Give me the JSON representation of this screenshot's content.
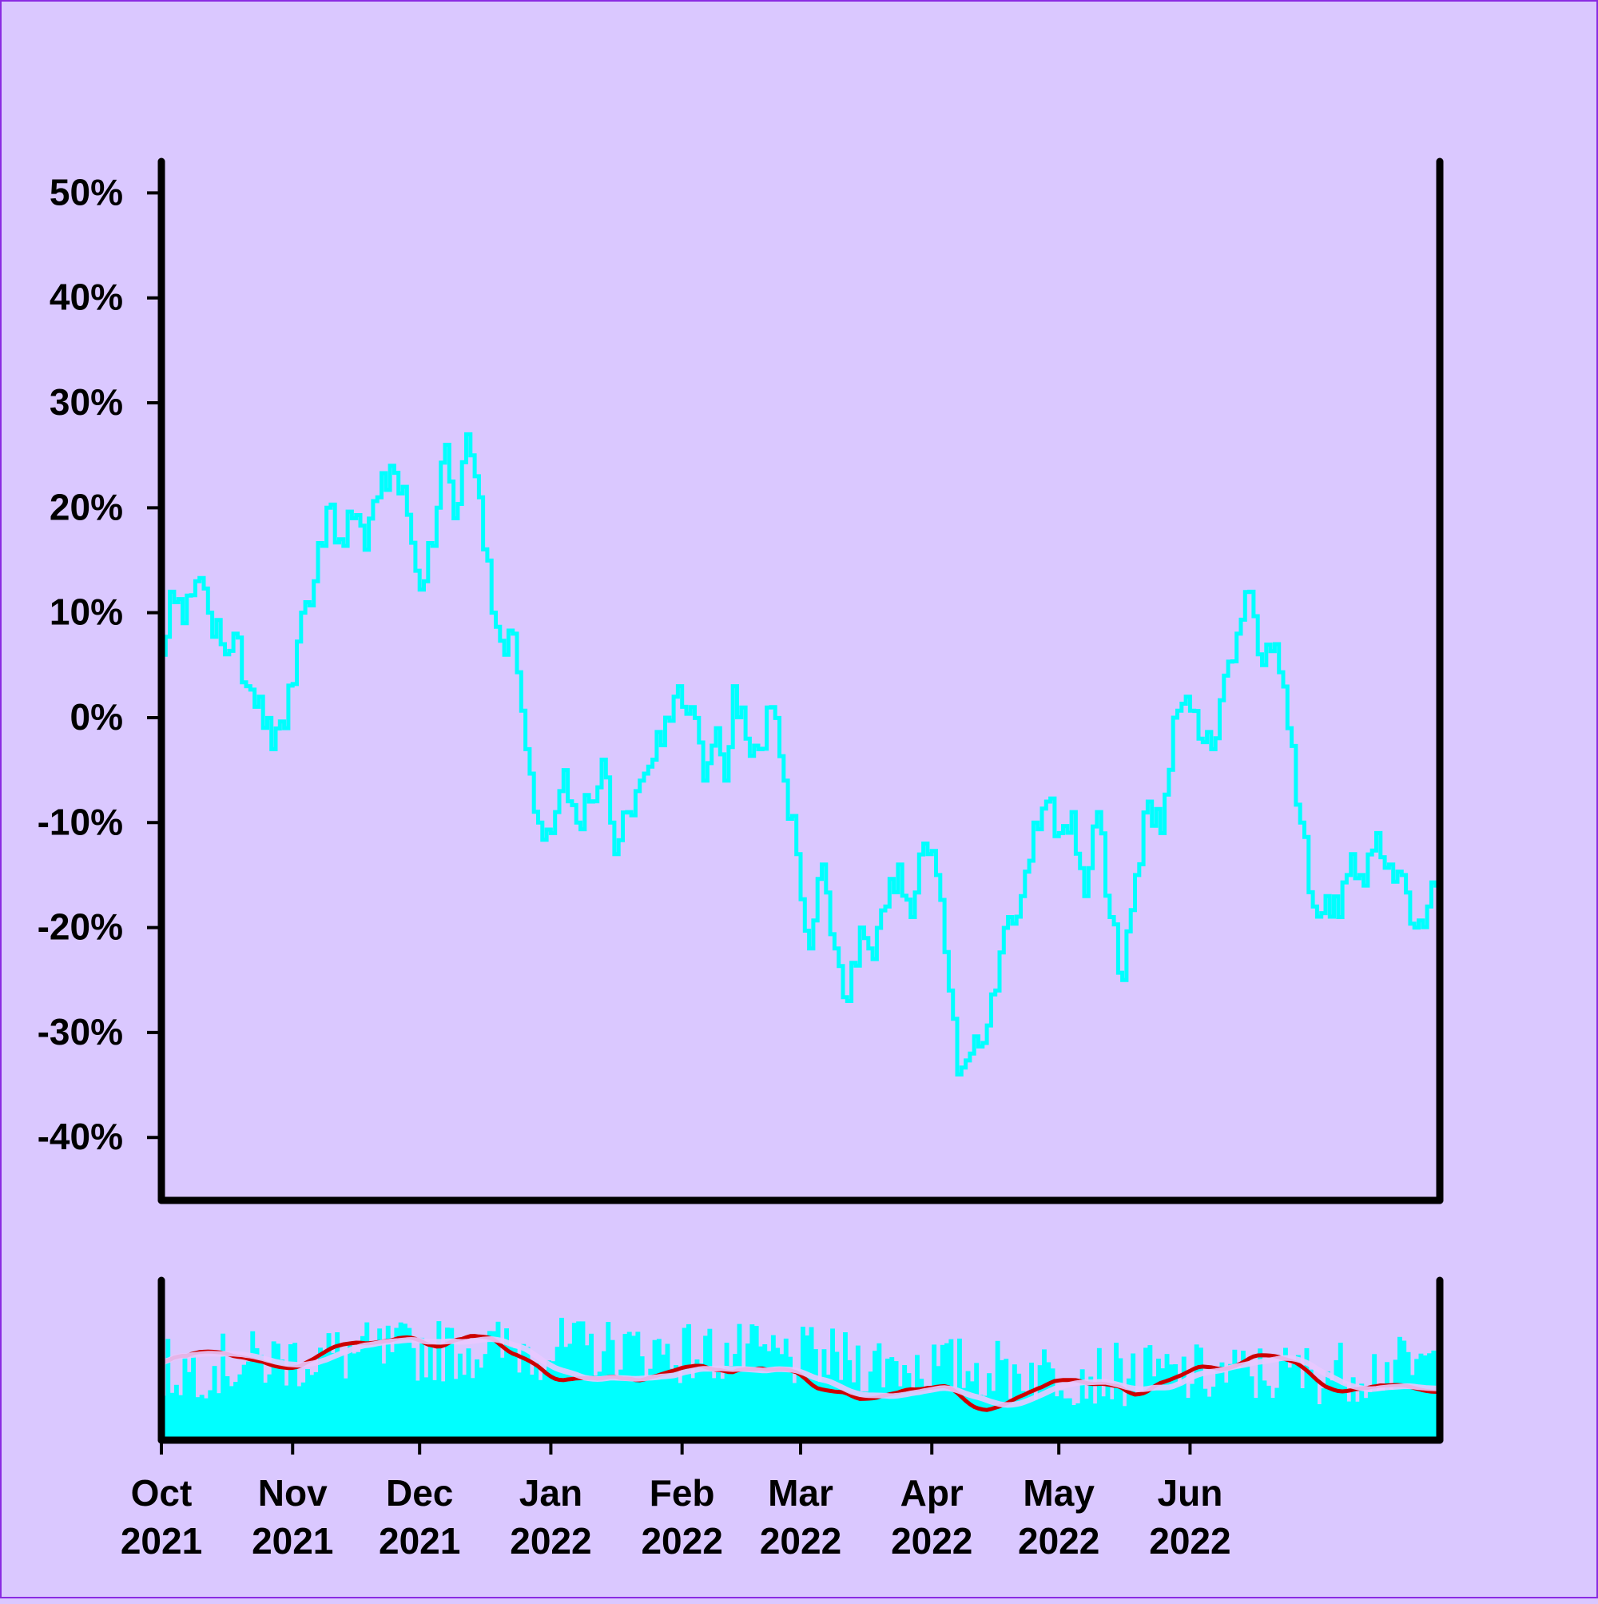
{
  "chart_data": {
    "type": "line",
    "colors": {
      "background": "#dac8ff",
      "frame": "#000000",
      "price_line": "#00ffff",
      "volume_bars": "#00ffff",
      "volume_ma_fast": "#cc0000",
      "volume_ma_slow": "#e8c8ff"
    },
    "price_panel": {
      "y_ticks": [
        50,
        40,
        30,
        20,
        10,
        0,
        -10,
        -20,
        -30,
        -40
      ],
      "y_tick_labels": [
        "50%",
        "40%",
        "30%",
        "20%",
        "10%",
        "0%",
        "-10%",
        "-20%",
        "-30%",
        "-40%"
      ],
      "ylim": [
        -46,
        53
      ],
      "grid": false,
      "series": [
        {
          "keypoints": [
            [
              "2021-10-01",
              3
            ],
            [
              "2021-10-04",
              12
            ],
            [
              "2021-10-07",
              9
            ],
            [
              "2021-10-10",
              13
            ],
            [
              "2021-10-13",
              10
            ],
            [
              "2021-10-16",
              7
            ],
            [
              "2021-10-19",
              8
            ],
            [
              "2021-10-22",
              3
            ],
            [
              "2021-10-25",
              2
            ],
            [
              "2021-10-28",
              -3
            ],
            [
              "2021-10-31",
              -1
            ],
            [
              "2021-11-04",
              10
            ],
            [
              "2021-11-07",
              13
            ],
            [
              "2021-11-10",
              20
            ],
            [
              "2021-11-13",
              17
            ],
            [
              "2021-11-16",
              19
            ],
            [
              "2021-11-19",
              16
            ],
            [
              "2021-11-22",
              21
            ],
            [
              "2021-11-25",
              24
            ],
            [
              "2021-11-28",
              22
            ],
            [
              "2021-12-01",
              14
            ],
            [
              "2021-12-03",
              13
            ],
            [
              "2021-12-06",
              20
            ],
            [
              "2021-12-08",
              26
            ],
            [
              "2021-12-10",
              19
            ],
            [
              "2021-12-13",
              27
            ],
            [
              "2021-12-16",
              21
            ],
            [
              "2021-12-19",
              10
            ],
            [
              "2021-12-22",
              6
            ],
            [
              "2021-12-24",
              8
            ],
            [
              "2021-12-27",
              -3
            ],
            [
              "2021-12-30",
              -10
            ],
            [
              "2022-01-02",
              -11
            ],
            [
              "2022-01-05",
              -5
            ],
            [
              "2022-01-08",
              -10
            ],
            [
              "2022-01-11",
              -8
            ],
            [
              "2022-01-14",
              -4
            ],
            [
              "2022-01-17",
              -13
            ],
            [
              "2022-01-20",
              -9
            ],
            [
              "2022-01-23",
              -6
            ],
            [
              "2022-01-26",
              -4
            ],
            [
              "2022-01-29",
              0
            ],
            [
              "2022-02-01",
              3
            ],
            [
              "2022-02-04",
              1
            ],
            [
              "2022-02-07",
              -6
            ],
            [
              "2022-02-10",
              -1
            ],
            [
              "2022-02-12",
              -6
            ],
            [
              "2022-02-14",
              3
            ],
            [
              "2022-02-17",
              -2
            ],
            [
              "2022-02-20",
              -3
            ],
            [
              "2022-02-23",
              1
            ],
            [
              "2022-02-26",
              -6
            ],
            [
              "2022-03-01",
              -13
            ],
            [
              "2022-03-04",
              -22
            ],
            [
              "2022-03-07",
              -14
            ],
            [
              "2022-03-10",
              -22
            ],
            [
              "2022-03-13",
              -27
            ],
            [
              "2022-03-16",
              -20
            ],
            [
              "2022-03-19",
              -23
            ],
            [
              "2022-03-22",
              -18
            ],
            [
              "2022-03-25",
              -14
            ],
            [
              "2022-03-28",
              -19
            ],
            [
              "2022-03-31",
              -12
            ],
            [
              "2022-04-03",
              -15
            ],
            [
              "2022-04-06",
              -26
            ],
            [
              "2022-04-08",
              -34
            ],
            [
              "2022-04-11",
              -32
            ],
            [
              "2022-04-14",
              -31
            ],
            [
              "2022-04-17",
              -26
            ],
            [
              "2022-04-20",
              -19
            ],
            [
              "2022-04-23",
              -17
            ],
            [
              "2022-04-26",
              -10
            ],
            [
              "2022-04-29",
              -8
            ],
            [
              "2022-05-02",
              -11
            ],
            [
              "2022-05-05",
              -9
            ],
            [
              "2022-05-08",
              -17
            ],
            [
              "2022-05-11",
              -9
            ],
            [
              "2022-05-14",
              -19
            ],
            [
              "2022-05-17",
              -25
            ],
            [
              "2022-05-20",
              -15
            ],
            [
              "2022-05-23",
              -8
            ],
            [
              "2022-05-26",
              -11
            ],
            [
              "2022-05-29",
              0
            ],
            [
              "2022-06-01",
              2
            ],
            [
              "2022-06-04",
              -2
            ],
            [
              "2022-06-07",
              -3
            ],
            [
              "2022-06-10",
              4
            ],
            [
              "2022-06-13",
              8
            ],
            [
              "2022-06-16",
              12
            ],
            [
              "2022-06-19",
              5
            ],
            [
              "2022-06-22",
              7
            ],
            [
              "2022-06-25",
              -1
            ],
            [
              "2022-06-28",
              -10
            ],
            [
              "2022-07-01",
              -18
            ],
            [
              "2022-07-04",
              -17
            ],
            [
              "2022-07-07",
              -19
            ],
            [
              "2022-07-10",
              -13
            ],
            [
              "2022-07-13",
              -16
            ],
            [
              "2022-07-16",
              -11
            ],
            [
              "2022-07-19",
              -14
            ],
            [
              "2022-07-22",
              -15
            ],
            [
              "2022-07-25",
              -20
            ],
            [
              "2022-07-28",
              -18
            ],
            [
              "2022-07-30",
              -16
            ]
          ]
        }
      ]
    },
    "volume_panel": {
      "ylim": [
        0,
        150
      ],
      "grid": false
    },
    "x_axis": {
      "xlim": [
        "2021-10-01",
        "2022-07-30"
      ],
      "ticks": [
        "2021-10-01",
        "2021-11-01",
        "2021-12-01",
        "2022-01-01",
        "2022-02-01",
        "2022-03-01",
        "2022-04-01",
        "2022-05-01",
        "2022-06-01"
      ],
      "tick_labels": [
        [
          "Oct",
          "2021"
        ],
        [
          "Nov",
          "2021"
        ],
        [
          "Dec",
          "2021"
        ],
        [
          "Jan",
          "2022"
        ],
        [
          "Feb",
          "2022"
        ],
        [
          "Mar",
          "2022"
        ],
        [
          "Apr",
          "2022"
        ],
        [
          "May",
          "2022"
        ],
        [
          "Jun",
          "2022"
        ]
      ]
    }
  }
}
